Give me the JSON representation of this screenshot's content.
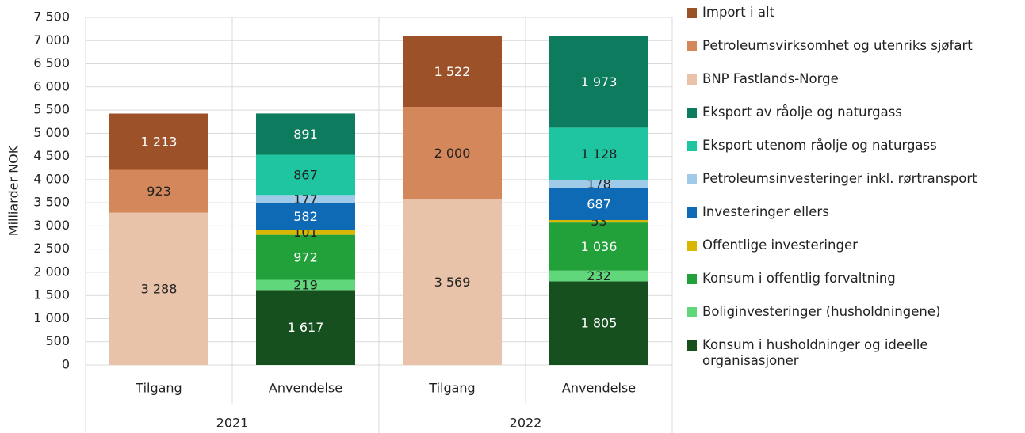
{
  "chart_data": {
    "type": "stacked_bar",
    "y_label": "Milliarder NOK",
    "categories": [
      "Tilgang",
      "Anvendelse",
      "Tilgang",
      "Anvendelse"
    ],
    "groups": [
      "2021",
      "2022"
    ],
    "ylim": [
      0,
      7500
    ],
    "yticks": [
      0,
      500,
      {
        "value": 1000,
        "label": "1 000"
      },
      {
        "value": 1500,
        "label": "1 500"
      },
      {
        "value": 2000,
        "label": "2 000"
      },
      {
        "value": 2500,
        "label": "2 500"
      },
      {
        "value": 3000,
        "label": "3 000"
      },
      {
        "value": 3500,
        "label": "3 500"
      },
      {
        "value": 4000,
        "label": "4 000"
      },
      {
        "value": 4500,
        "label": "4 500"
      },
      {
        "value": 5000,
        "label": "5 000"
      },
      {
        "value": 5500,
        "label": "5 500"
      },
      {
        "value": 6000,
        "label": "6 000"
      },
      {
        "value": 6500,
        "label": "6 500"
      },
      {
        "value": 7000,
        "label": "7 000"
      },
      {
        "value": 7500,
        "label": "7 500"
      }
    ],
    "grid": true,
    "legend": "right",
    "series": [
      {
        "name": "Import i alt",
        "color": "#9c5129",
        "values": [
          1213,
          null,
          1522,
          null
        ],
        "value_labels": [
          "1 213",
          null,
          "1 522",
          null
        ]
      },
      {
        "name": "Petroleumsvirksomhet og utenriks sjøfart",
        "color": "#d4875a",
        "values": [
          923,
          null,
          2000,
          null
        ],
        "value_labels": [
          "923",
          null,
          "2 000",
          null
        ]
      },
      {
        "name": "BNP Fastlands-Norge",
        "color": "#e8c3aa",
        "values": [
          3288,
          null,
          3569,
          null
        ],
        "value_labels": [
          "3 288",
          null,
          "3 569",
          null
        ]
      },
      {
        "name": "Eksport av råolje og naturgass",
        "color": "#0c7b5e",
        "values": [
          null,
          891,
          null,
          1973
        ],
        "value_labels": [
          null,
          "891",
          null,
          "1 973"
        ]
      },
      {
        "name": "Eksport utenom råolje og naturgass",
        "color": "#1ec5a0",
        "values": [
          null,
          867,
          null,
          1128
        ],
        "value_labels": [
          null,
          "867",
          null,
          "1 128"
        ]
      },
      {
        "name": "Petroleumsinvesteringer inkl. rørtransport",
        "color": "#9fcbe8",
        "values": [
          null,
          177,
          null,
          178
        ],
        "value_labels": [
          null,
          "177",
          null,
          "178"
        ]
      },
      {
        "name": "Investeringer ellers",
        "color": "#0f6ab5",
        "values": [
          null,
          582,
          null,
          687
        ],
        "value_labels": [
          null,
          "582",
          null,
          "687"
        ]
      },
      {
        "name": "Offentlige investeringer",
        "color": "#d9b600",
        "values": [
          null,
          101,
          null,
          53
        ],
        "value_labels": [
          null,
          "101",
          null,
          "53"
        ]
      },
      {
        "name": "Konsum i offentlig forvaltning",
        "color": "#22a03a",
        "values": [
          null,
          972,
          null,
          1036
        ],
        "value_labels": [
          null,
          "972",
          null,
          "1 036"
        ]
      },
      {
        "name": "Boliginvesteringer (husholdningene)",
        "color": "#5fd77a",
        "values": [
          null,
          219,
          null,
          232
        ],
        "value_labels": [
          null,
          "219",
          null,
          "232"
        ]
      },
      {
        "name": "Konsum i husholdninger og ideelle organisasjoner",
        "color": "#17501f",
        "values": [
          null,
          1617,
          null,
          1805
        ],
        "value_labels": [
          null,
          "1 617",
          null,
          "1 805"
        ]
      }
    ]
  }
}
